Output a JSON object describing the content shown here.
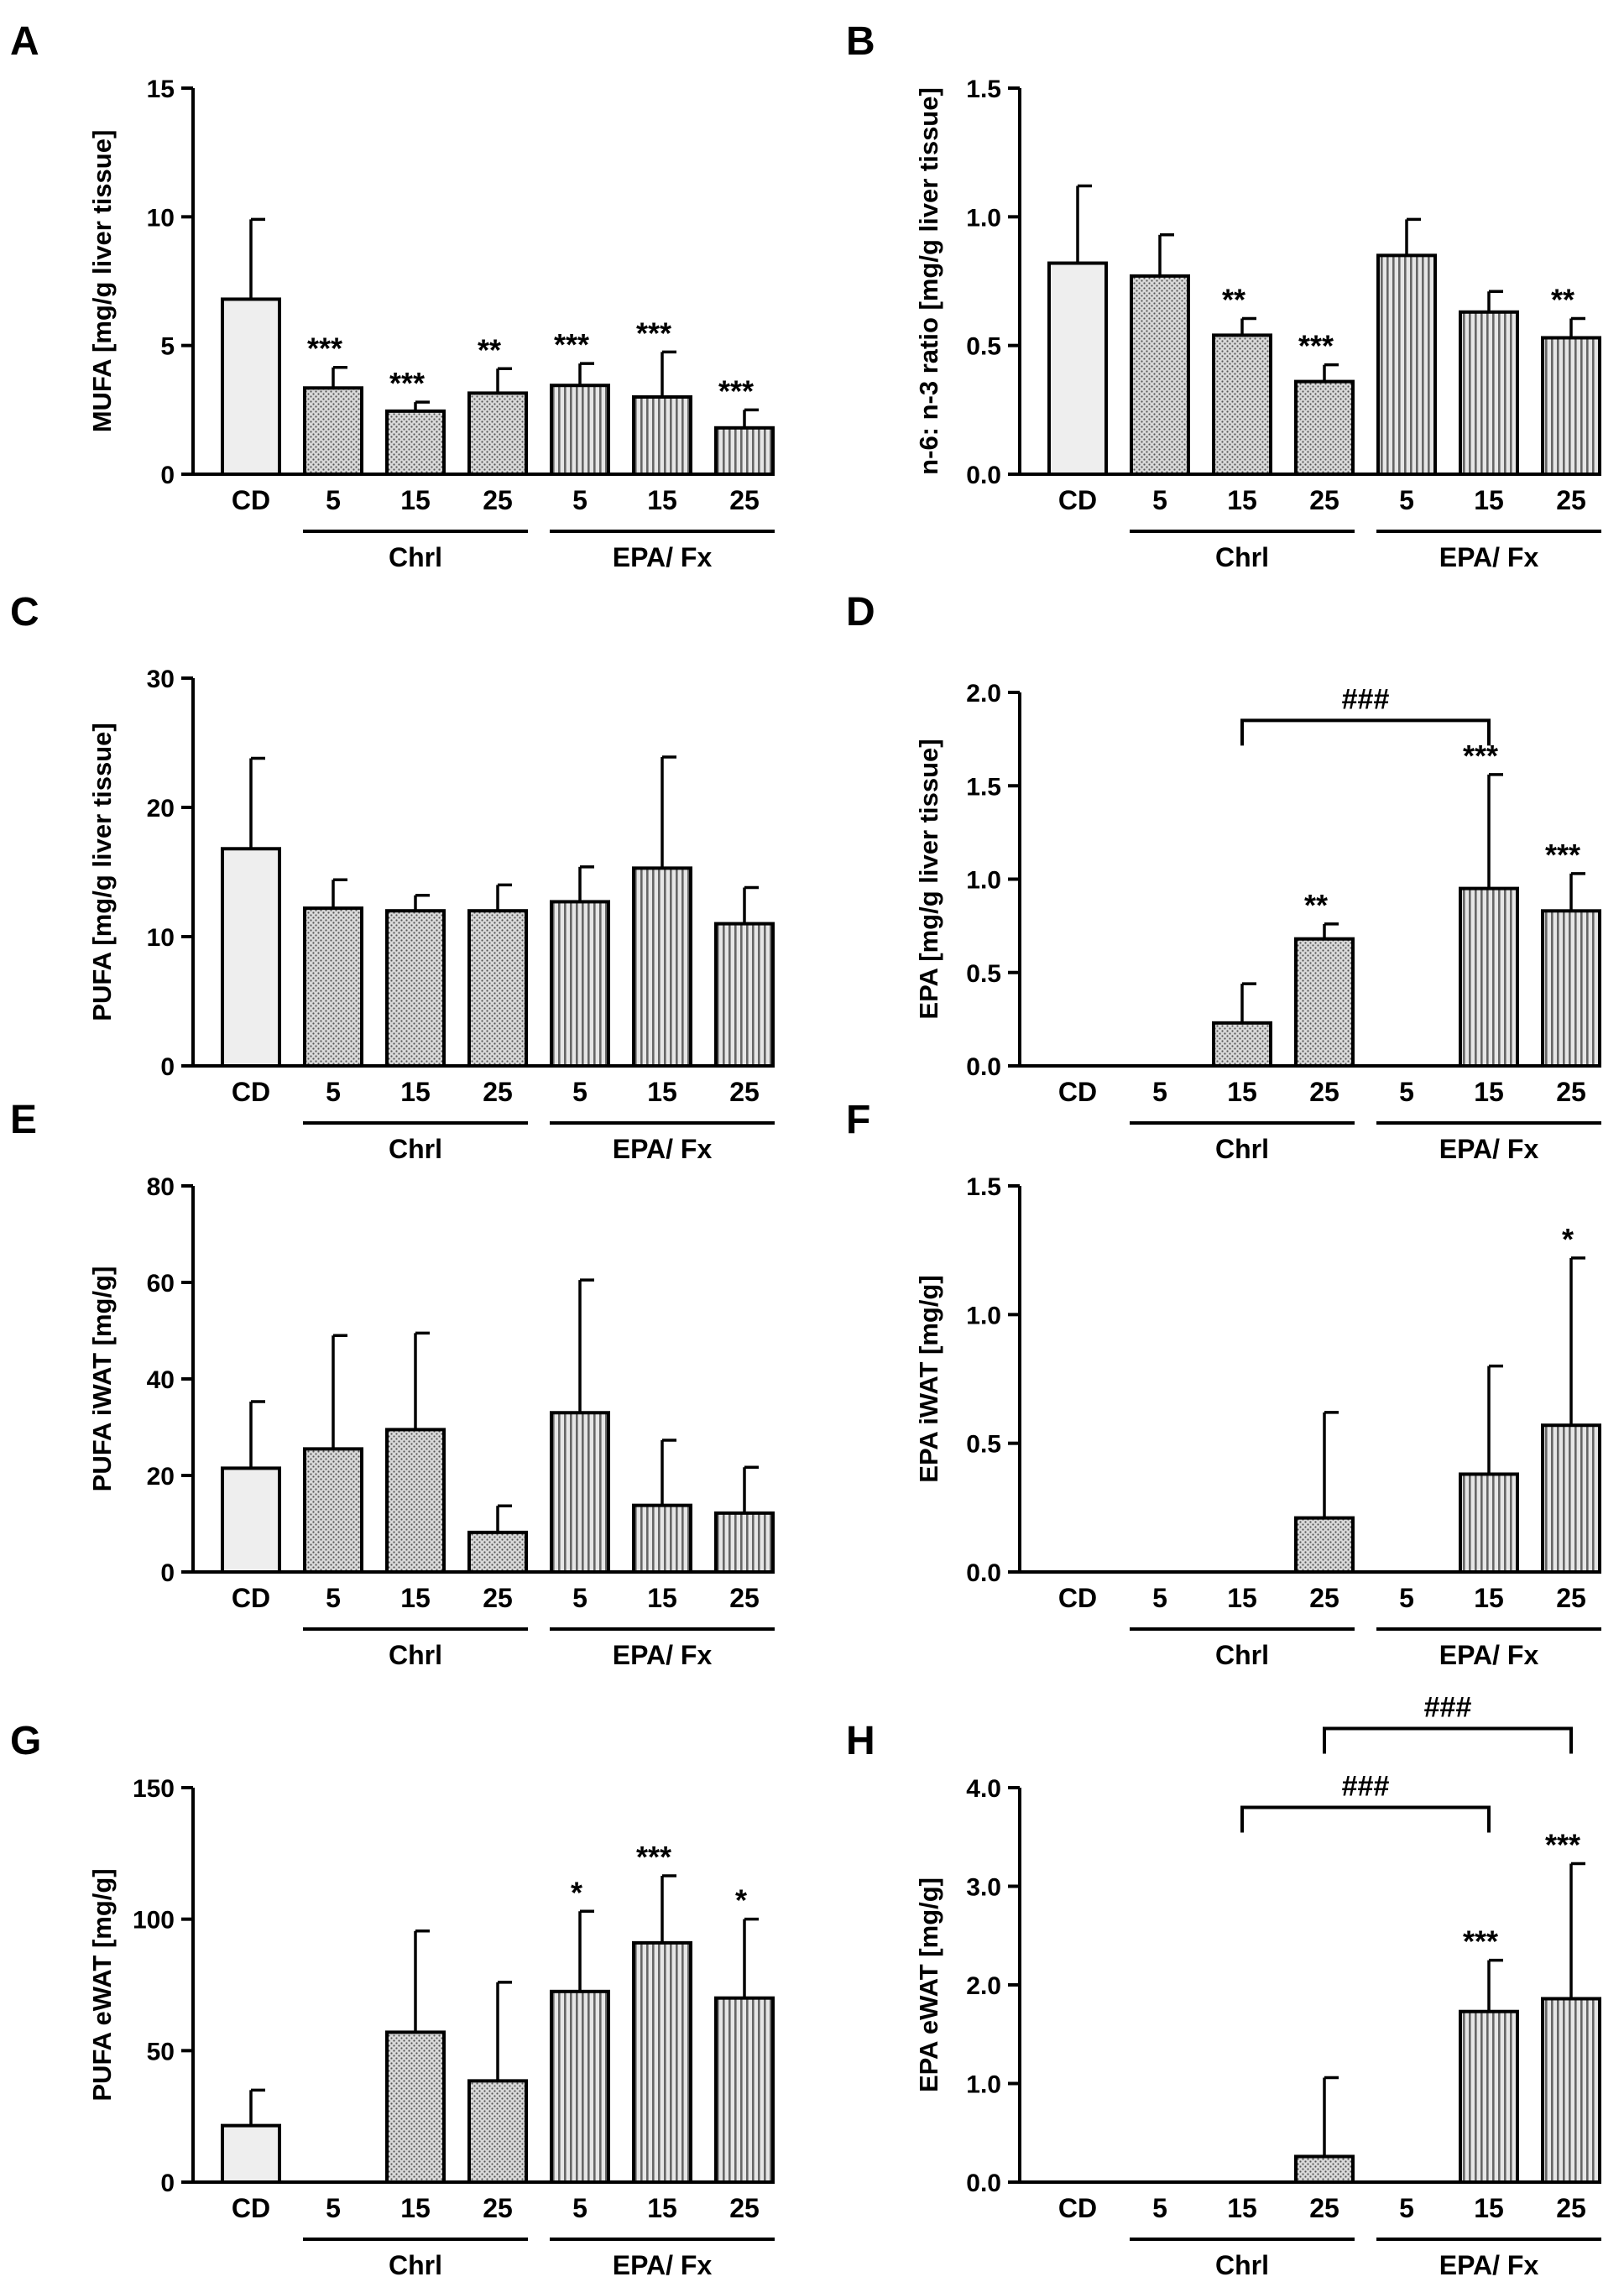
{
  "colors": {
    "axis": "#000000",
    "bar_cd": "#eeeeee",
    "bar_chrl": "#c7c7c7",
    "bar_epa": "#b9b9b9",
    "background": "#ffffff"
  },
  "categories": [
    "CD",
    "5",
    "15",
    "25",
    "5",
    "15",
    "25"
  ],
  "group_labels": [
    "Chrl",
    "EPA/ Fx"
  ],
  "chart_data": [
    {
      "panel": "A",
      "type": "bar",
      "ylabel": "MUFA [mg/g liver tissue]",
      "ylim": [
        0,
        15
      ],
      "yticks": [
        "0",
        "5",
        "10",
        "15"
      ],
      "values": [
        6.8,
        3.35,
        2.45,
        3.15,
        3.45,
        3.0,
        1.8
      ],
      "errors": [
        3.1,
        0.8,
        0.35,
        0.95,
        0.85,
        1.75,
        0.7
      ],
      "sig": [
        "",
        "***",
        "***",
        "**",
        "***",
        "***",
        "***"
      ],
      "brackets": []
    },
    {
      "panel": "B",
      "type": "bar",
      "ylabel": "n-6: n-3 ratio [mg/g liver tissue]",
      "ylim": [
        0,
        1.5
      ],
      "yticks": [
        "0.0",
        "0.5",
        "1.0",
        "1.5"
      ],
      "values": [
        0.82,
        0.77,
        0.54,
        0.36,
        0.85,
        0.63,
        0.53
      ],
      "errors": [
        0.3,
        0.16,
        0.065,
        0.065,
        0.14,
        0.08,
        0.075
      ],
      "sig": [
        "",
        "",
        "**",
        "***",
        "",
        "",
        "**"
      ],
      "brackets": []
    },
    {
      "panel": "C",
      "type": "bar",
      "ylabel": "PUFA [mg/g liver tissue]",
      "ylim": [
        0,
        30
      ],
      "yticks": [
        "0",
        "10",
        "20",
        "30"
      ],
      "values": [
        16.8,
        12.2,
        12.0,
        12.0,
        12.7,
        15.3,
        11.0
      ],
      "errors": [
        7.0,
        2.2,
        1.2,
        2.0,
        2.7,
        8.6,
        2.8
      ],
      "sig": [
        "",
        "",
        "",
        "",
        "",
        "",
        ""
      ],
      "brackets": []
    },
    {
      "panel": "D",
      "type": "bar",
      "ylabel": "EPA [mg/g liver tissue]",
      "ylim": [
        0,
        2.0
      ],
      "yticks": [
        "0.0",
        "0.5",
        "1.0",
        "1.5",
        "2.0"
      ],
      "values": [
        0,
        0,
        0.23,
        0.68,
        0,
        0.95,
        0.83
      ],
      "errors": [
        0,
        0,
        0.21,
        0.08,
        0,
        0.61,
        0.2
      ],
      "sig": [
        "",
        "",
        "",
        "**",
        "",
        "***",
        "***"
      ],
      "brackets": [
        {
          "from": 2,
          "to": 5,
          "level": 1.85,
          "label": "###"
        }
      ]
    },
    {
      "panel": "E",
      "type": "bar",
      "ylabel": "PUFA iWAT [mg/g]",
      "ylim": [
        0,
        80
      ],
      "yticks": [
        "0",
        "20",
        "40",
        "60",
        "80"
      ],
      "values": [
        21.5,
        25.5,
        29.5,
        8.2,
        33.0,
        13.8,
        12.2
      ],
      "errors": [
        13.8,
        23.5,
        20.0,
        5.5,
        27.5,
        13.5,
        9.5
      ],
      "sig": [
        "",
        "",
        "",
        "",
        "",
        "",
        ""
      ],
      "brackets": []
    },
    {
      "panel": "F",
      "type": "bar",
      "ylabel": "EPA iWAT [mg/g]",
      "ylim": [
        0,
        1.5
      ],
      "yticks": [
        "0.0",
        "0.5",
        "1.0",
        "1.5"
      ],
      "values": [
        0,
        0,
        0,
        0.21,
        0,
        0.38,
        0.57
      ],
      "errors": [
        0,
        0,
        0,
        0.41,
        0,
        0.42,
        0.65
      ],
      "sig": [
        "",
        "",
        "",
        "",
        "",
        "",
        "*"
      ],
      "brackets": []
    },
    {
      "panel": "G",
      "type": "bar",
      "ylabel": "PUFA eWAT [mg/g]",
      "ylim": [
        0,
        150
      ],
      "yticks": [
        "0",
        "50",
        "100",
        "150"
      ],
      "values": [
        21.5,
        0,
        57.0,
        38.5,
        72.5,
        91.0,
        70.0
      ],
      "errors": [
        13.5,
        0,
        38.5,
        37.5,
        30.5,
        25.5,
        30.0
      ],
      "sig": [
        "",
        "",
        "",
        "",
        "*",
        "***",
        "*"
      ],
      "brackets": []
    },
    {
      "panel": "H",
      "type": "bar",
      "ylabel": "EPA eWAT [mg/g]",
      "ylim": [
        0,
        4.0
      ],
      "yticks": [
        "0.0",
        "1.0",
        "2.0",
        "3.0",
        "4.0"
      ],
      "values": [
        0,
        0,
        0,
        0.26,
        0,
        1.73,
        1.86
      ],
      "errors": [
        0,
        0,
        0,
        0.8,
        0,
        0.52,
        1.37
      ],
      "sig": [
        "",
        "",
        "",
        "",
        "",
        "***",
        "***"
      ],
      "brackets": [
        {
          "from": 2,
          "to": 5,
          "level": 3.8,
          "label": "###"
        },
        {
          "from": 3,
          "to": 6,
          "level": 4.6,
          "label": "###"
        }
      ]
    }
  ]
}
